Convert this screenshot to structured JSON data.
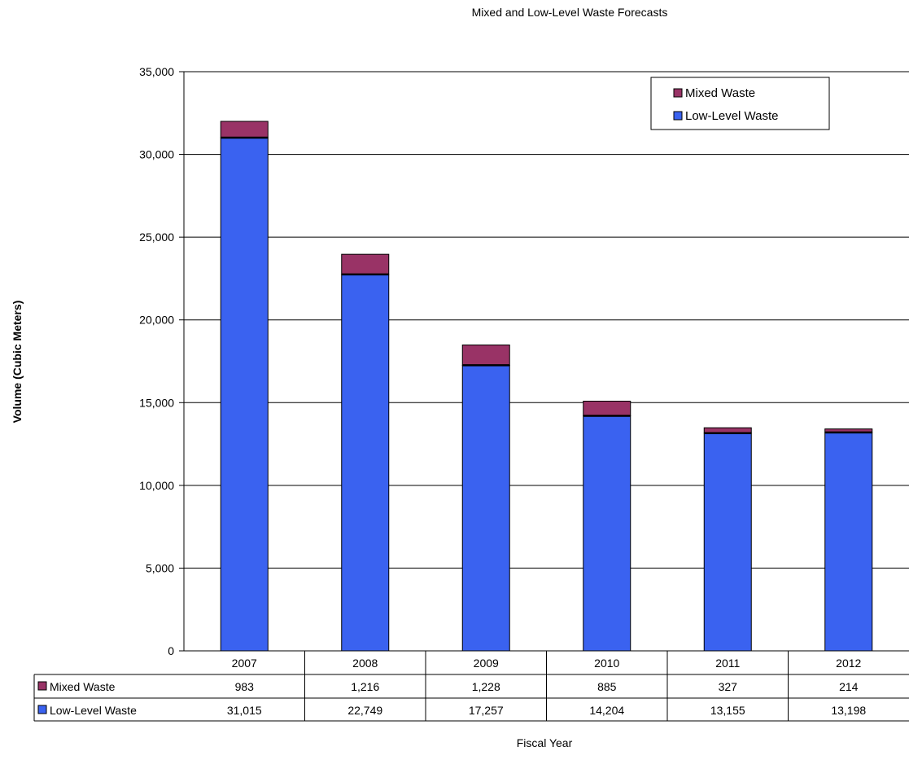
{
  "chart_data": {
    "type": "bar",
    "stacked": true,
    "title": "Mixed and Low-Level Waste Forecasts",
    "xlabel": "Fiscal Year",
    "ylabel": "Volume (Cubic Meters)",
    "ylim": [
      0,
      35000
    ],
    "yticks": [
      0,
      5000,
      10000,
      15000,
      20000,
      25000,
      30000,
      35000
    ],
    "ytick_labels": [
      "0",
      "5,000",
      "10,000",
      "15,000",
      "20,000",
      "25,000",
      "30,000",
      "35,000"
    ],
    "grid": true,
    "legend_position": "top-right",
    "categories": [
      "2007",
      "2008",
      "2009",
      "2010",
      "2011",
      "2012"
    ],
    "series": [
      {
        "name": "Low-Level Waste",
        "color": "#3a62f0",
        "values": [
          31015,
          22749,
          17257,
          14204,
          13155,
          13198
        ],
        "labels": [
          "31,015",
          "22,749",
          "17,257",
          "14,204",
          "13,155",
          "13,198"
        ]
      },
      {
        "name": "Mixed Waste",
        "color": "#993366",
        "values": [
          983,
          1216,
          1228,
          885,
          327,
          214
        ],
        "labels": [
          "983",
          "1,216",
          "1,228",
          "885",
          "327",
          "214"
        ]
      }
    ],
    "legend_entries": [
      "Mixed Waste",
      "Low-Level Waste"
    ],
    "data_table": {
      "row_order": [
        "Mixed Waste",
        "Low-Level Waste"
      ]
    }
  }
}
